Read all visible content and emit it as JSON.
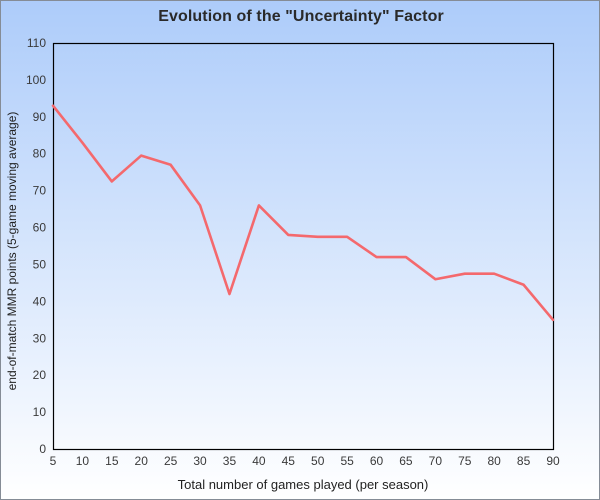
{
  "title": "Evolution of the \"Uncertainty\" Factor",
  "colors": {
    "line": "#f4696d",
    "axis": "#000000",
    "bg_top": "#adccfa",
    "bg_bottom": "#ffffff",
    "frame_border": "#858c96",
    "title_text": "#2a2a2a",
    "tick_text": "#3a3a3a",
    "axis_label_text": "#222222"
  },
  "chart_data": {
    "type": "line",
    "title": "Evolution of the \"Uncertainty\" Factor",
    "xlabel": "Total number of games played (per season)",
    "ylabel": "end-of-match MMR points (5-game moving average)",
    "x": [
      5,
      10,
      15,
      20,
      25,
      30,
      35,
      40,
      45,
      50,
      55,
      60,
      65,
      70,
      75,
      80,
      85,
      90
    ],
    "values": [
      93,
      83,
      72.5,
      79.5,
      77,
      66,
      42,
      66,
      58,
      57.5,
      57.5,
      52,
      52,
      46,
      47.5,
      47.5,
      44.5,
      35
    ],
    "series_name": "end-of-match MMR 5-game moving average",
    "xlim": [
      5,
      90
    ],
    "ylim": [
      0,
      110
    ],
    "x_ticks": [
      5,
      10,
      15,
      20,
      25,
      30,
      35,
      40,
      45,
      50,
      55,
      60,
      65,
      70,
      75,
      80,
      85,
      90
    ],
    "y_ticks": [
      0,
      10,
      20,
      30,
      40,
      50,
      60,
      70,
      80,
      90,
      100,
      110
    ],
    "grid": false,
    "legend": "none"
  }
}
